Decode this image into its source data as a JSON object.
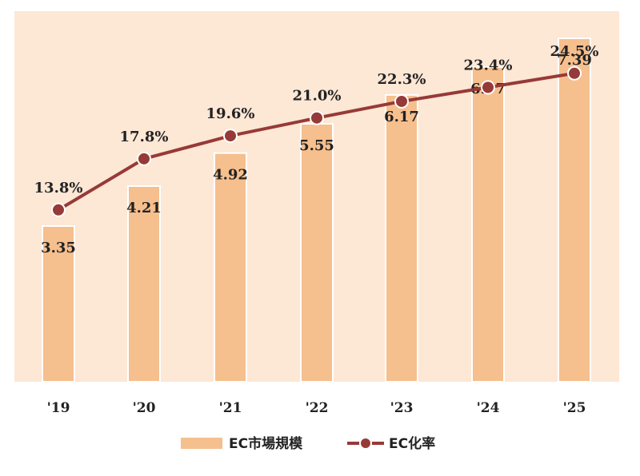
{
  "chart_data": {
    "type": "bar",
    "categories": [
      "'19",
      "'20",
      "'21",
      "'22",
      "'23",
      "'24",
      "'25"
    ],
    "series": [
      {
        "name": "EC市場規模",
        "type": "bar",
        "values": [
          3.35,
          4.21,
          4.92,
          5.55,
          6.17,
          6.77,
          7.39
        ],
        "labels": [
          "3.35",
          "4.21",
          "4.92",
          "5.55",
          "6.17",
          "6.77",
          "7.39"
        ],
        "color": "#f6bf8e"
      },
      {
        "name": "EC化率",
        "type": "line",
        "values": [
          13.8,
          17.8,
          19.6,
          21.0,
          22.3,
          23.4,
          24.5
        ],
        "labels": [
          "13.8%",
          "17.8%",
          "19.6%",
          "21.0%",
          "22.3%",
          "23.4%",
          "24.5%"
        ],
        "color": "#963a38"
      }
    ],
    "bar_ylim": [
      0,
      7.5
    ],
    "line_ylim": [
      0,
      26
    ],
    "plot_background": "#fde7d5",
    "grid": false,
    "legend_position": "bottom-center"
  }
}
